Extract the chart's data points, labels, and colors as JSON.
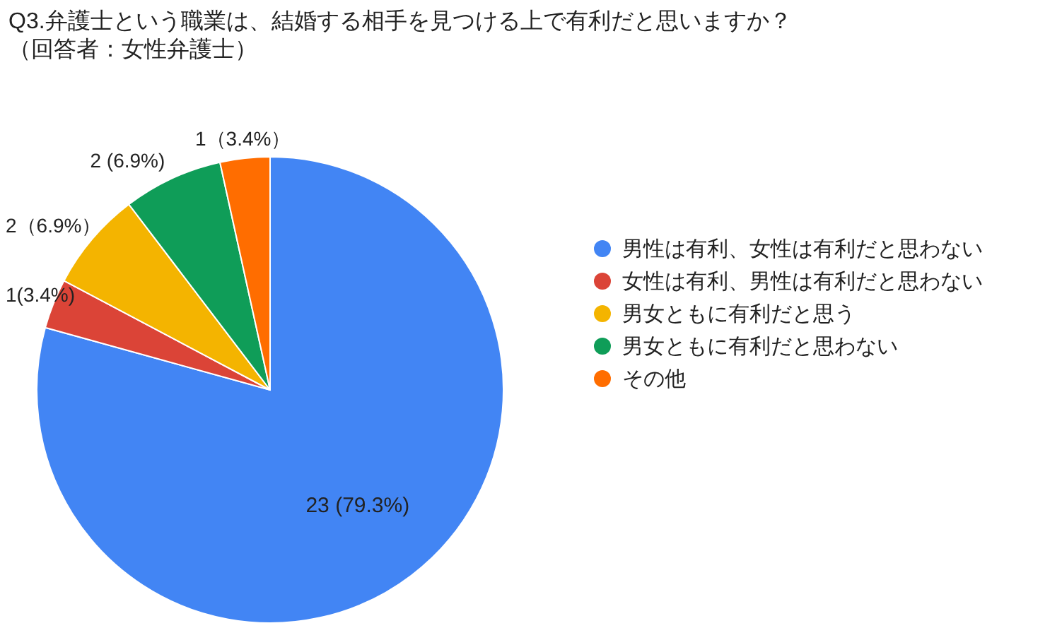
{
  "chart_data": {
    "type": "pie",
    "title": "Q3.弁護士という職業は、結婚する相手を見つける上で有利だと思いますか？",
    "subtitle": "（回答者：女性弁護士）",
    "categories": [
      "男性は有利、女性は有利だと思わない",
      "女性は有利、男性は有利だと思わない",
      "男女ともに有利だと思う",
      "男女ともに有利だと思わない",
      "その他"
    ],
    "values": [
      23,
      1,
      2,
      2,
      1
    ],
    "colors": [
      "#4285f4",
      "#db4437",
      "#f4b400",
      "#0f9d58",
      "#ff6d00"
    ],
    "value_labels": [
      "23 (79.3%)",
      "1(3.4%)",
      "2（6.9%）",
      "2 (6.9%)",
      "1（3.4%）"
    ],
    "legend": "right"
  }
}
